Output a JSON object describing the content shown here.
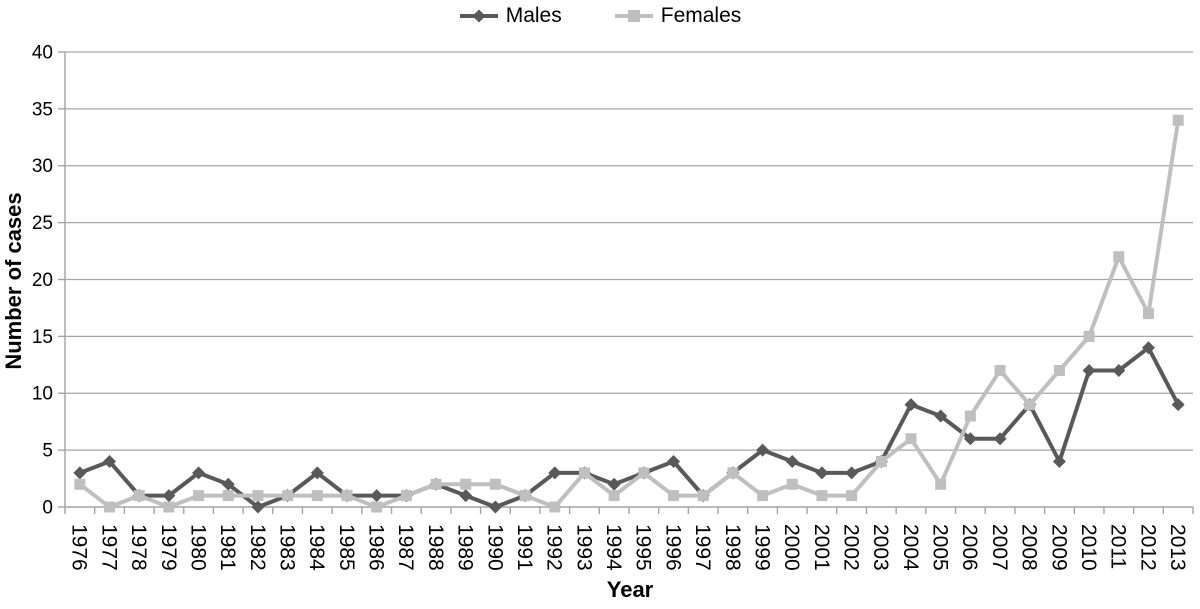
{
  "chart_data": {
    "type": "line",
    "title": "",
    "xlabel": "Year",
    "ylabel": "Number of cases",
    "x": [
      "1976",
      "1977",
      "1978",
      "1979",
      "1980",
      "1981",
      "1982",
      "1983",
      "1984",
      "1985",
      "1986",
      "1987",
      "1988",
      "1989",
      "1990",
      "1991",
      "1992",
      "1993",
      "1994",
      "1995",
      "1996",
      "1997",
      "1998",
      "1999",
      "2000",
      "2001",
      "2002",
      "2003",
      "2004",
      "2005",
      "2006",
      "2007",
      "2008",
      "2009",
      "2010",
      "2011",
      "2012",
      "2013"
    ],
    "series": [
      {
        "name": "Males",
        "marker": "diamond",
        "color": "#595959",
        "values": [
          3,
          4,
          1,
          1,
          3,
          2,
          0,
          1,
          3,
          1,
          1,
          1,
          2,
          1,
          0,
          1,
          3,
          3,
          2,
          3,
          4,
          1,
          3,
          5,
          4,
          3,
          3,
          4,
          9,
          8,
          6,
          6,
          9,
          4,
          12,
          12,
          14,
          9
        ]
      },
      {
        "name": "Females",
        "marker": "square",
        "color": "#bfbfbf",
        "values": [
          2,
          0,
          1,
          0,
          1,
          1,
          1,
          1,
          1,
          1,
          0,
          1,
          2,
          2,
          2,
          1,
          0,
          3,
          1,
          3,
          1,
          1,
          3,
          1,
          2,
          1,
          1,
          4,
          6,
          2,
          8,
          12,
          9,
          12,
          15,
          22,
          17,
          34
        ]
      }
    ],
    "ylim": [
      0,
      40
    ],
    "yticks": [
      0,
      5,
      10,
      15,
      20,
      25,
      30,
      35,
      40
    ],
    "grid": "horizontal",
    "legend_position": "top-center",
    "xtick_rotation_deg": 90,
    "axis_color": "#a3a3a3",
    "gridline_color": "#a6a6a6",
    "text_color": "#000000"
  }
}
